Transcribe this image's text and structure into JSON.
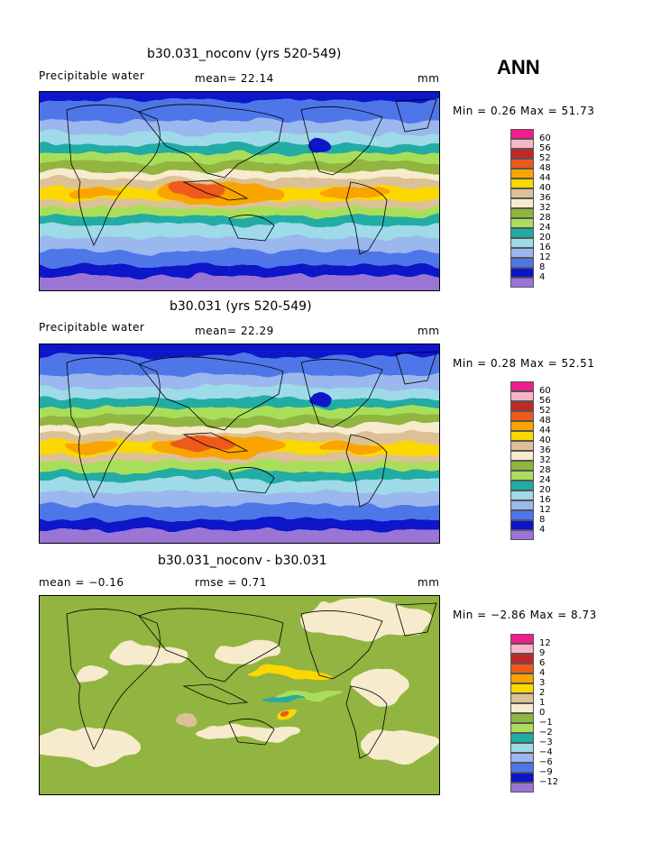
{
  "season": "ANN",
  "panels": [
    {
      "title": "b30.031_noconv (yrs 520-549)",
      "left_label": "Precipitable water",
      "mean_text": "mean=  22.14",
      "units": "mm",
      "minmax_text": "Min =   0.26 Max =  51.73",
      "colorbar": {
        "labels": [
          "60",
          "56",
          "52",
          "48",
          "44",
          "40",
          "36",
          "32",
          "28",
          "24",
          "20",
          "16",
          "12",
          "8",
          "4"
        ],
        "colors": [
          "#ef1e8c",
          "#f7b6c8",
          "#c0282a",
          "#ee5a1c",
          "#f9a400",
          "#fbd800",
          "#dcc197",
          "#f6ebcc",
          "#92b440",
          "#a9de5a",
          "#20aca4",
          "#9edae8",
          "#9ab7ee",
          "#4f76e8",
          "#0a14c8",
          "#9a74d6"
        ]
      }
    },
    {
      "title": "b30.031 (yrs 520-549)",
      "left_label": "Precipitable water",
      "mean_text": "mean=  22.29",
      "units": "mm",
      "minmax_text": "Min =   0.28 Max =  52.51",
      "colorbar": {
        "labels": [
          "60",
          "56",
          "52",
          "48",
          "44",
          "40",
          "36",
          "32",
          "28",
          "24",
          "20",
          "16",
          "12",
          "8",
          "4"
        ],
        "colors": [
          "#ef1e8c",
          "#f7b6c8",
          "#c0282a",
          "#ee5a1c",
          "#f9a400",
          "#fbd800",
          "#dcc197",
          "#f6ebcc",
          "#92b440",
          "#a9de5a",
          "#20aca4",
          "#9edae8",
          "#9ab7ee",
          "#4f76e8",
          "#0a14c8",
          "#9a74d6"
        ]
      }
    },
    {
      "title": "b30.031_noconv - b30.031",
      "left_label": "mean =   −0.16",
      "mean_text": "rmse =    0.71",
      "units": "mm",
      "minmax_text": "Min =  −2.86 Max =   8.73",
      "colorbar": {
        "labels": [
          "12",
          "9",
          "6",
          "4",
          "3",
          "2",
          "1",
          "0",
          "−1",
          "−2",
          "−3",
          "−4",
          "−6",
          "−9",
          "−12"
        ],
        "colors": [
          "#ef1e8c",
          "#f7b6c8",
          "#c0282a",
          "#ee5a1c",
          "#f9a400",
          "#fbd800",
          "#dcc197",
          "#f6ebcc",
          "#92b440",
          "#a9de5a",
          "#20aca4",
          "#9edae8",
          "#9ab7ee",
          "#4f76e8",
          "#0a14c8",
          "#9a74d6"
        ]
      }
    }
  ]
}
